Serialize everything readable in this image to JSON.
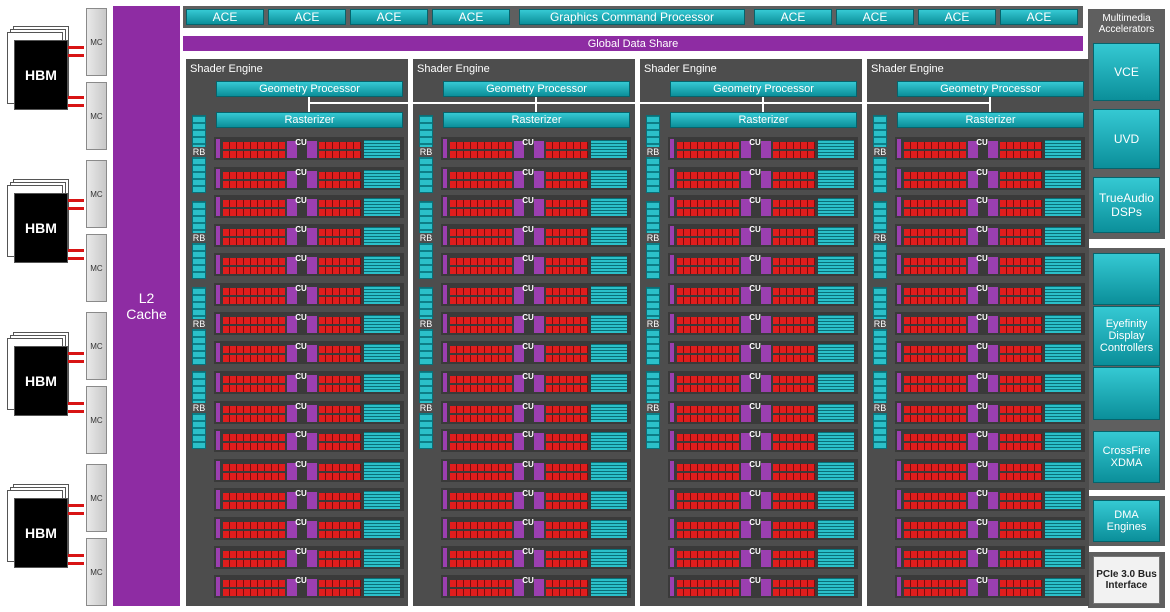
{
  "ace_labels": [
    "ACE",
    "ACE",
    "ACE",
    "ACE",
    "ACE",
    "ACE",
    "ACE",
    "ACE"
  ],
  "gcp_label": "Graphics Command Processor",
  "gds_label": "Global Data Share",
  "l2_label_line1": "L2",
  "l2_label_line2": "Cache",
  "hbm_label": "HBM",
  "mc_label": "MC",
  "shader_engine_label": "Shader Engine",
  "geometry_processor_label": "Geometry Processor",
  "rasterizer_label": "Rasterizer",
  "cu_label": "CU",
  "rb_label": "RB",
  "multimedia_title": "Multimedia Accelerators",
  "vce_label": "VCE",
  "uvd_label": "UVD",
  "trueaudio_label": "TrueAudio DSPs",
  "eyefinity_label": "Eyefinity Display Controllers",
  "crossfire_label": "CrossFire XDMA",
  "dma_label": "DMA Engines",
  "pcie_label": "PCIe 3.0 Bus Interface",
  "colors": {
    "teal": "#1ab3be",
    "purple": "#8e2ca3",
    "dark_gray": "#4d4d4d",
    "red": "#e01d1d"
  }
}
